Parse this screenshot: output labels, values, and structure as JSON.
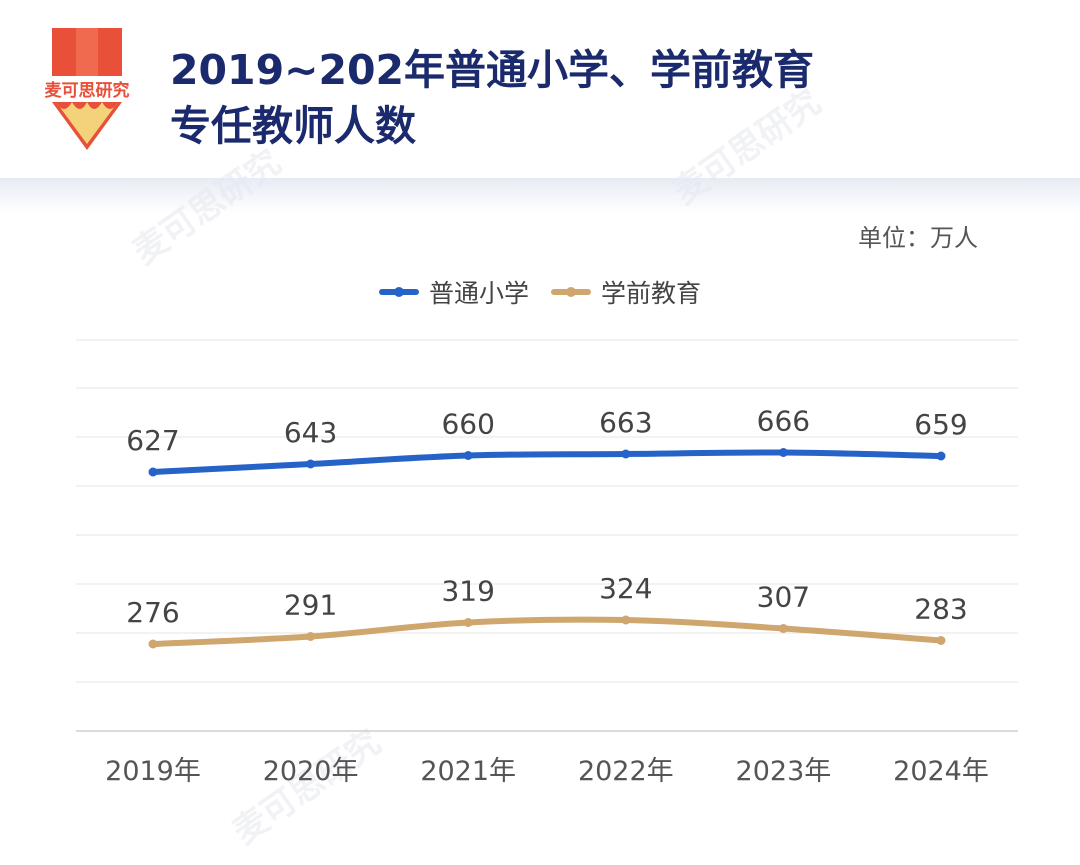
{
  "brand": {
    "name": "麦可思研究"
  },
  "title_lines": [
    "2019~202年普通小学、学前教育",
    "专任教师人数"
  ],
  "unit_label": "单位：万人",
  "colors": {
    "primary_series": "#2563c9",
    "secondary_series": "#cfa66e",
    "title": "#1a2a6c"
  },
  "chart_data": {
    "type": "line",
    "categories": [
      "2019年",
      "2020年",
      "2021年",
      "2022年",
      "2023年",
      "2024年"
    ],
    "series": [
      {
        "name": "普通小学",
        "values": [
          627,
          643,
          660,
          663,
          666,
          659
        ],
        "color": "#2563c9"
      },
      {
        "name": "学前教育",
        "values": [
          276,
          291,
          319,
          324,
          307,
          283
        ],
        "color": "#cfa66e"
      }
    ],
    "grid": true,
    "legend": "top-center"
  }
}
